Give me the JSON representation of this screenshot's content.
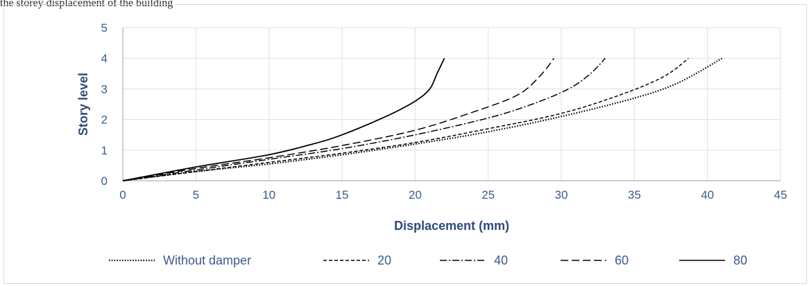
{
  "caption": "the storey displacement of the building",
  "chart_data": {
    "type": "line",
    "xlabel": "Displacement (mm)",
    "ylabel": "Story level",
    "xlim": [
      0,
      45
    ],
    "ylim": [
      0,
      5
    ],
    "x_ticks": [
      "0",
      "5",
      "10",
      "15",
      "20",
      "25",
      "30",
      "35",
      "40",
      "45"
    ],
    "y_ticks": [
      "0",
      "1",
      "2",
      "3",
      "4",
      "5"
    ],
    "grid": true,
    "legend_position": "bottom",
    "colors": {
      "line": "#000000",
      "grid": "#d9e6f2",
      "axis": "#bfbfbf",
      "text": "#3b5a8c"
    },
    "series": [
      {
        "name": "Without damper",
        "style": "dotted",
        "points": [
          [
            0,
            0
          ],
          [
            5,
            0.3
          ],
          [
            10,
            0.55
          ],
          [
            15,
            0.85
          ],
          [
            20,
            1.2
          ],
          [
            25,
            1.6
          ],
          [
            30,
            2.1
          ],
          [
            35,
            2.7
          ],
          [
            38,
            3.2
          ],
          [
            41,
            4
          ]
        ]
      },
      {
        "name": "20",
        "style": "short-dash",
        "points": [
          [
            0,
            0
          ],
          [
            5,
            0.3
          ],
          [
            10,
            0.6
          ],
          [
            15,
            0.9
          ],
          [
            20,
            1.25
          ],
          [
            25,
            1.7
          ],
          [
            30,
            2.2
          ],
          [
            34,
            2.8
          ],
          [
            37,
            3.4
          ],
          [
            38.7,
            4
          ]
        ]
      },
      {
        "name": "40",
        "style": "dash-dot",
        "points": [
          [
            0,
            0
          ],
          [
            5,
            0.35
          ],
          [
            10,
            0.7
          ],
          [
            15,
            1.05
          ],
          [
            20,
            1.5
          ],
          [
            25,
            2.05
          ],
          [
            28,
            2.5
          ],
          [
            30.5,
            3.0
          ],
          [
            32,
            3.5
          ],
          [
            33,
            4
          ]
        ]
      },
      {
        "name": "60",
        "style": "long-dash",
        "points": [
          [
            0,
            0
          ],
          [
            5,
            0.4
          ],
          [
            10,
            0.75
          ],
          [
            15,
            1.15
          ],
          [
            20,
            1.65
          ],
          [
            24,
            2.25
          ],
          [
            27,
            2.8
          ],
          [
            28.5,
            3.4
          ],
          [
            29.5,
            4
          ]
        ]
      },
      {
        "name": "80",
        "style": "solid",
        "points": [
          [
            0,
            0
          ],
          [
            5,
            0.45
          ],
          [
            10,
            0.85
          ],
          [
            13,
            1.2
          ],
          [
            15,
            1.5
          ],
          [
            18,
            2.1
          ],
          [
            20,
            2.6
          ],
          [
            21,
            3.0
          ],
          [
            21.5,
            3.5
          ],
          [
            22,
            4
          ]
        ]
      }
    ]
  }
}
